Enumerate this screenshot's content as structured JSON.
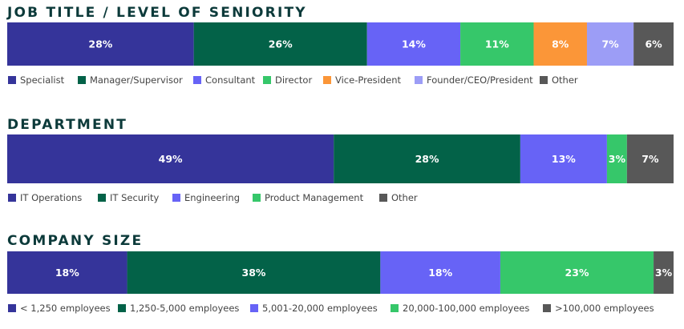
{
  "chart_data": [
    {
      "type": "bar",
      "orientation": "horizontal-stacked-100",
      "title": "JOB TITLE / LEVEL OF SENIORITY",
      "legend_position": "bottom",
      "categories": [
        "Specialist",
        "Manager/Supervisor",
        "Consultant",
        "Director",
        "Vice-President",
        "Founder/CEO/President",
        "Other"
      ],
      "values": [
        28,
        26,
        14,
        11,
        8,
        7,
        6
      ],
      "value_labels": [
        "28%",
        "26%",
        "14%",
        "11%",
        "8%",
        "7%",
        "6%"
      ],
      "colors": [
        "#35349a",
        "#036248",
        "#6763f6",
        "#36c76a",
        "#fb9638",
        "#9c9df6",
        "#585858"
      ]
    },
    {
      "type": "bar",
      "orientation": "horizontal-stacked-100",
      "title": "DEPARTMENT",
      "legend_position": "bottom",
      "categories": [
        "IT Operations",
        "IT Security",
        "Engineering",
        "Product Management",
        "Other"
      ],
      "values": [
        49,
        28,
        13,
        3,
        7
      ],
      "value_labels": [
        "49%",
        "28%",
        "13%",
        "3%",
        "7%"
      ],
      "colors": [
        "#35349a",
        "#036248",
        "#6763f6",
        "#36c76a",
        "#585858"
      ]
    },
    {
      "type": "bar",
      "orientation": "horizontal-stacked-100",
      "title": "COMPANY SIZE",
      "legend_position": "bottom",
      "categories": [
        "< 1,250 employees",
        "1,250-5,000 employees",
        "5,001-20,000 employees",
        "20,000-100,000 employees",
        ">100,000 employees"
      ],
      "values": [
        18,
        38,
        18,
        23,
        3
      ],
      "value_labels": [
        "18%",
        "38%",
        "18%",
        "23%",
        "3%"
      ],
      "colors": [
        "#35349a",
        "#036248",
        "#6763f6",
        "#36c76a",
        "#585858"
      ]
    }
  ]
}
